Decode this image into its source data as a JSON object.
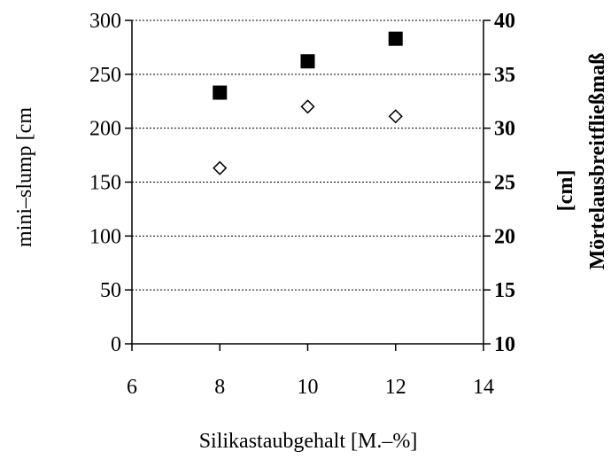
{
  "chart_data": {
    "type": "scatter",
    "title": "",
    "xlabel": "Silikastaubgehalt [M.–%]",
    "ylabel_left": "mini–slump [cm",
    "ylabel_right_line1": "Mörtelausbreitfließmaß",
    "ylabel_right_line2": "[cm]",
    "xlim": [
      6,
      14
    ],
    "x_ticks": [
      6,
      8,
      10,
      12,
      14
    ],
    "ylim_left": [
      0,
      300
    ],
    "y_ticks_left": [
      0,
      50,
      100,
      150,
      200,
      250,
      300
    ],
    "ylim_right": [
      10,
      40
    ],
    "y_ticks_right": [
      10,
      15,
      20,
      25,
      30,
      35,
      40
    ],
    "grid": "horizontal dotted",
    "series": [
      {
        "marker": "filled-square",
        "axis": "left",
        "color": "#000000",
        "x": [
          8,
          10,
          12
        ],
        "y": [
          233,
          262,
          283
        ]
      },
      {
        "marker": "open-diamond",
        "axis": "left",
        "color": "#000000",
        "x": [
          8,
          10,
          12
        ],
        "y": [
          163,
          220,
          211
        ]
      }
    ]
  }
}
